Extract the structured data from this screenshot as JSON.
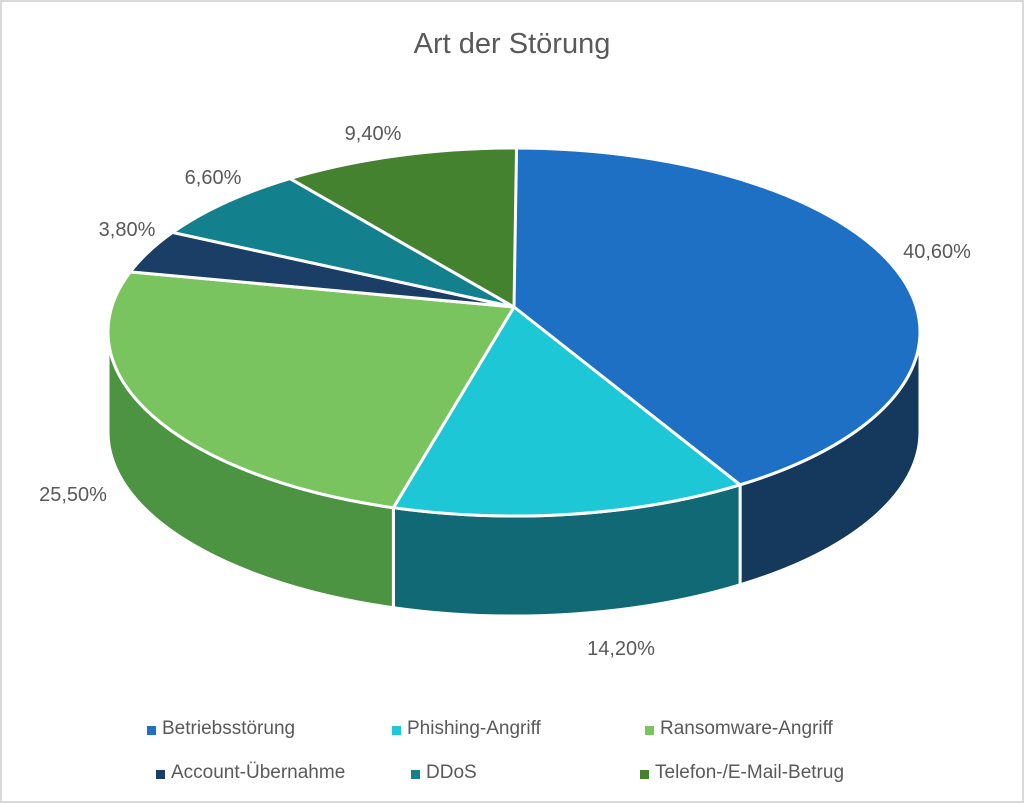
{
  "title": "Art der Störung",
  "chart_data": {
    "type": "pie",
    "projection": "3d",
    "title": "Art der Störung",
    "direction": "clockwise",
    "start_angle_deg": 0,
    "legend_position": "bottom",
    "label_color": "#595959",
    "title_color": "#595959",
    "border_color": "#D9D9D9",
    "slices": [
      {
        "label": "Betriebsstörung",
        "value": 40.6,
        "display": "40,60%",
        "color": "#1E70C5",
        "side_color": "#15395C"
      },
      {
        "label": "Phishing-Angriff",
        "value": 14.2,
        "display": "14,20%",
        "color": "#1EC7D6",
        "side_color": "#106974"
      },
      {
        "label": "Ransomware-Angriff",
        "value": 25.5,
        "display": "25,50%",
        "color": "#7AC45F",
        "side_color": "#4C9342"
      },
      {
        "label": "Account-Übernahme",
        "value": 3.8,
        "display": "3,80%",
        "color": "#1A3E66",
        "side_color": "#142F4E"
      },
      {
        "label": "DDoS",
        "value": 6.6,
        "display": "6,60%",
        "color": "#12808D",
        "side_color": "#0D5E68"
      },
      {
        "label": "Telefon-/E-Mail-Betrug",
        "value": 9.4,
        "display": "9,40%",
        "color": "#448230",
        "side_color": "#346325"
      }
    ]
  }
}
